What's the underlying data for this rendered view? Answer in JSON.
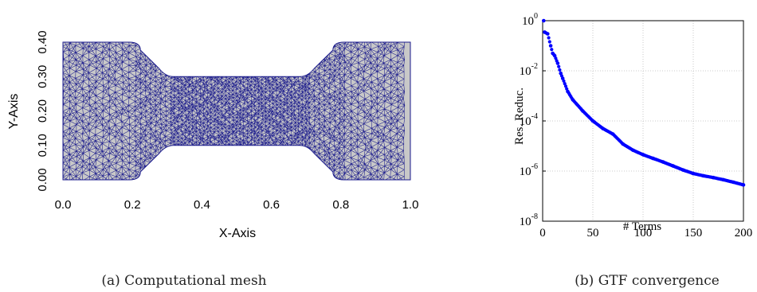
{
  "captions": {
    "a": "(a) Computational mesh",
    "b": "(b) GTF convergence"
  },
  "chart_data": [
    {
      "type": "mesh",
      "xlabel": "X-Axis",
      "ylabel": "Y-Axis",
      "xlim": [
        0.0,
        1.0
      ],
      "ylim": [
        0.0,
        0.4
      ],
      "xticks": [
        "0.0",
        "0.2",
        "0.4",
        "0.6",
        "0.8",
        "1.0"
      ],
      "yticks": [
        "0.00",
        "0.10",
        "0.20",
        "0.30",
        "0.40"
      ],
      "outline": [
        [
          0.0,
          0.0
        ],
        [
          0.2,
          0.0
        ],
        [
          0.3,
          0.1
        ],
        [
          0.7,
          0.1
        ],
        [
          0.8,
          0.0
        ],
        [
          1.0,
          0.0
        ],
        [
          1.0,
          0.4
        ],
        [
          0.8,
          0.4
        ],
        [
          0.7,
          0.3
        ],
        [
          0.3,
          0.3
        ],
        [
          0.2,
          0.4
        ],
        [
          0.0,
          0.4
        ]
      ],
      "fill_color": "#c8c8c8",
      "edge_color": "#1a1a8c"
    },
    {
      "type": "scatter",
      "xlabel": "# Terms",
      "ylabel": "Res. Reduc.",
      "xlim": [
        0,
        200
      ],
      "ylim": [
        1e-08,
        1
      ],
      "yscale": "log",
      "grid": true,
      "xticks": [
        "0",
        "50",
        "100",
        "150",
        "200"
      ],
      "ytick_exponents": [
        "0",
        "-2",
        "-4",
        "-6",
        "-8"
      ],
      "marker_color": "#0000ff",
      "series": [
        {
          "x": [
            1,
            2,
            5,
            8,
            10,
            12,
            15,
            18,
            20,
            25,
            30,
            40,
            50,
            60,
            70,
            80,
            90,
            100,
            110,
            120,
            130,
            140,
            150,
            160,
            170,
            180,
            190,
            200
          ],
          "y": [
            1.0,
            0.35,
            0.3,
            0.1,
            0.05,
            0.04,
            0.02,
            0.008,
            0.005,
            0.0015,
            0.0007,
            0.00025,
            0.0001,
            5e-05,
            3e-05,
            1.2e-05,
            6.8e-06,
            4.5e-06,
            3.2e-06,
            2.3e-06,
            1.6e-06,
            1.1e-06,
            8e-07,
            6.5e-07,
            5.5e-07,
            4.5e-07,
            3.6e-07,
            2.8e-07
          ]
        }
      ]
    }
  ]
}
